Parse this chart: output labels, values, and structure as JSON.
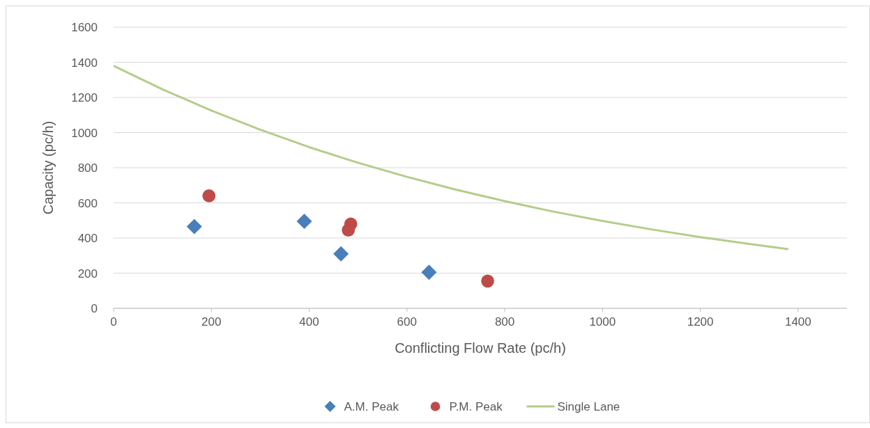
{
  "chart_data": {
    "type": "scatter",
    "xlabel": "Conflicting Flow Rate (pc/h)",
    "ylabel": "Capacity (pc/h)",
    "xlim": [
      0,
      1500
    ],
    "xticks": [
      0,
      200,
      400,
      600,
      800,
      1000,
      1200,
      1400
    ],
    "ylim": [
      0,
      1600
    ],
    "yticks": [
      0,
      200,
      400,
      600,
      800,
      1000,
      1200,
      1400,
      1600
    ],
    "grid": "y",
    "legend": "bottom",
    "series": [
      {
        "name": "A.M. Peak",
        "marker": "diamond",
        "color": "#4a7ebb",
        "x": [
          165,
          390,
          465,
          645
        ],
        "values": [
          465,
          495,
          310,
          205
        ]
      },
      {
        "name": "P.M. Peak",
        "marker": "circle",
        "color": "#be4b48",
        "x": [
          195,
          480,
          485,
          765
        ],
        "values": [
          640,
          445,
          480,
          155
        ]
      },
      {
        "name": "Single Lane",
        "type": "line",
        "marker": "none",
        "color": "#b3cd8a",
        "x": [
          0,
          100,
          200,
          300,
          400,
          500,
          600,
          700,
          800,
          900,
          1000,
          1100,
          1200,
          1300,
          1380
        ],
        "values": [
          1380,
          1246,
          1125,
          1016,
          917,
          828,
          748,
          675,
          610,
          550,
          497,
          449,
          405,
          366,
          337
        ]
      }
    ]
  }
}
